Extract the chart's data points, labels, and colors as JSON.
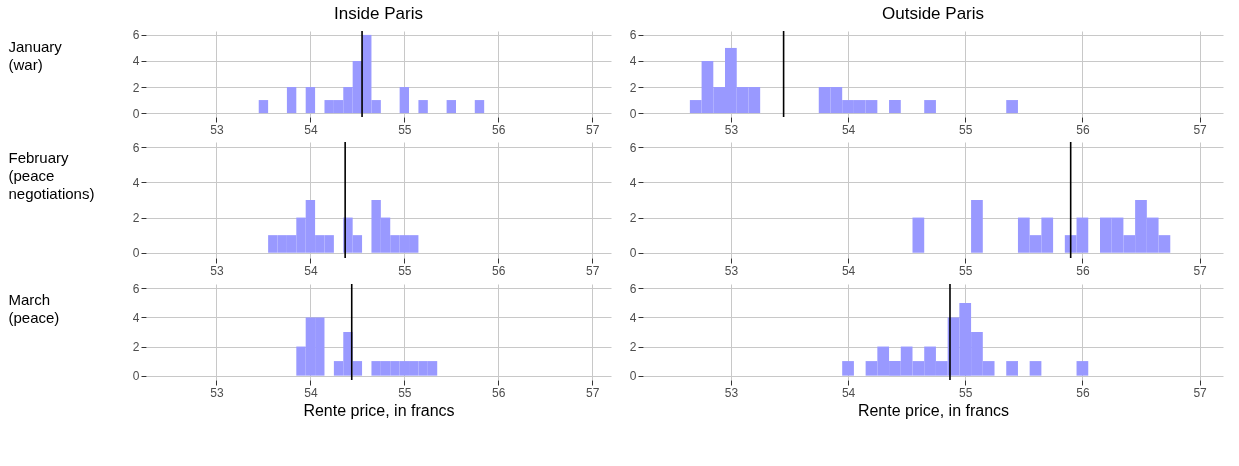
{
  "chart_data": [
    {
      "type": "histogram",
      "title": "Inside Paris",
      "ylabel": "January\n(war)",
      "bins": [
        53.45,
        53.55,
        53.65,
        53.75,
        53.85,
        53.95,
        54.05,
        54.15,
        54.25,
        54.35,
        54.45,
        54.55,
        54.65,
        54.75,
        54.85,
        54.95,
        55.05,
        55.15,
        55.25,
        55.35,
        55.45,
        55.55,
        55.65,
        55.75,
        55.85
      ],
      "values": [
        1,
        0,
        0,
        2,
        0,
        2,
        0,
        1,
        1,
        2,
        4,
        6,
        1,
        0,
        0,
        2,
        0,
        1,
        0,
        0,
        1,
        0,
        0,
        1
      ],
      "color": "#9999ff",
      "xlim": [
        52.25,
        57.2
      ],
      "xticks": [
        53,
        54,
        55,
        56,
        57
      ],
      "ylim": [
        -0.3,
        6.3
      ],
      "yticks": [
        0,
        2,
        4,
        6
      ],
      "grid": true,
      "ref_lines": [
        {
          "axis": "x",
          "value": 54.55,
          "color": "#000000"
        }
      ]
    },
    {
      "type": "histogram",
      "title": "Outside Paris",
      "bins": [
        52.65,
        52.75,
        52.85,
        52.95,
        53.05,
        53.15,
        53.25,
        53.35,
        53.45,
        53.55,
        53.65,
        53.75,
        53.85,
        53.95,
        54.05,
        54.15,
        54.25,
        54.35,
        54.45,
        54.55,
        54.65,
        54.75,
        54.85,
        54.95,
        55.05,
        55.15,
        55.25,
        55.35,
        55.45
      ],
      "values": [
        1,
        4,
        2,
        5,
        2,
        2,
        0,
        0,
        0,
        0,
        0,
        2,
        2,
        1,
        1,
        1,
        0,
        1,
        0,
        0,
        1,
        0,
        0,
        0,
        0,
        0,
        0,
        1
      ],
      "color": "#9999ff",
      "xlim": [
        52.25,
        57.2
      ],
      "xticks": [
        53,
        54,
        55,
        56,
        57
      ],
      "ylim": [
        -0.3,
        6.3
      ],
      "yticks": [
        0,
        2,
        4,
        6
      ],
      "grid": true,
      "ref_lines": [
        {
          "axis": "x",
          "value": 53.45,
          "color": "#000000"
        }
      ]
    },
    {
      "type": "histogram",
      "ylabel": "February\n(peace\n negotiations)",
      "bins": [
        53.55,
        53.65,
        53.75,
        53.85,
        53.95,
        54.05,
        54.15,
        54.25,
        54.35,
        54.45,
        54.55,
        54.65,
        54.75,
        54.85,
        54.95,
        55.05,
        55.15
      ],
      "values": [
        1,
        1,
        1,
        2,
        3,
        1,
        1,
        0,
        2,
        1,
        0,
        3,
        2,
        1,
        1,
        1
      ],
      "color": "#9999ff",
      "xlim": [
        52.25,
        57.2
      ],
      "xticks": [
        53,
        54,
        55,
        56,
        57
      ],
      "ylim": [
        -0.3,
        6.3
      ],
      "yticks": [
        0,
        2,
        4,
        6
      ],
      "grid": true,
      "ref_lines": [
        {
          "axis": "x",
          "value": 54.37,
          "color": "#000000"
        }
      ]
    },
    {
      "type": "histogram",
      "bins": [
        54.55,
        54.65,
        54.75,
        54.85,
        54.95,
        55.05,
        55.15,
        55.25,
        55.35,
        55.45,
        55.55,
        55.65,
        55.75,
        55.85,
        55.95,
        56.05,
        56.15,
        56.25,
        56.35,
        56.45,
        56.55,
        56.65,
        56.75
      ],
      "values": [
        2,
        0,
        0,
        0,
        0,
        3,
        0,
        0,
        0,
        2,
        1,
        2,
        0,
        1,
        2,
        0,
        2,
        2,
        1,
        3,
        2,
        1
      ],
      "color": "#9999ff",
      "xlim": [
        52.25,
        57.2
      ],
      "xticks": [
        53,
        54,
        55,
        56,
        57
      ],
      "ylim": [
        -0.3,
        6.3
      ],
      "yticks": [
        0,
        2,
        4,
        6
      ],
      "grid": true,
      "ref_lines": [
        {
          "axis": "x",
          "value": 55.9,
          "color": "#000000"
        }
      ]
    },
    {
      "type": "histogram",
      "ylabel": "March\n(peace)",
      "xlabel": "Rente price, in francs",
      "bins": [
        53.85,
        53.95,
        54.05,
        54.15,
        54.25,
        54.35,
        54.45,
        54.55,
        54.65,
        54.75,
        54.85,
        54.95,
        55.05,
        55.15,
        55.25,
        55.35
      ],
      "values": [
        2,
        4,
        4,
        0,
        1,
        3,
        1,
        0,
        1,
        1,
        1,
        1,
        1,
        1,
        1
      ],
      "color": "#9999ff",
      "xlim": [
        52.25,
        57.2
      ],
      "xticks": [
        53,
        54,
        55,
        56,
        57
      ],
      "ylim": [
        -0.3,
        6.3
      ],
      "yticks": [
        0,
        2,
        4,
        6
      ],
      "grid": true,
      "ref_lines": [
        {
          "axis": "x",
          "value": 54.44,
          "color": "#000000"
        }
      ]
    },
    {
      "type": "histogram",
      "xlabel": "Rente price, in francs",
      "bins": [
        53.95,
        54.05,
        54.15,
        54.25,
        54.35,
        54.45,
        54.55,
        54.65,
        54.75,
        54.85,
        54.95,
        55.05,
        55.15,
        55.25,
        55.35,
        55.45,
        55.55,
        55.65,
        55.75,
        55.85,
        55.95,
        56.05
      ],
      "values": [
        1,
        0,
        1,
        2,
        1,
        2,
        1,
        2,
        1,
        4,
        5,
        3,
        1,
        0,
        1,
        0,
        1,
        0,
        0,
        0,
        1
      ],
      "color": "#9999ff",
      "xlim": [
        52.25,
        57.2
      ],
      "xticks": [
        53,
        54,
        55,
        56,
        57
      ],
      "ylim": [
        -0.3,
        6.3
      ],
      "yticks": [
        0,
        2,
        4,
        6
      ],
      "grid": true,
      "ref_lines": [
        {
          "axis": "x",
          "value": 54.87,
          "color": "#000000"
        }
      ]
    }
  ]
}
